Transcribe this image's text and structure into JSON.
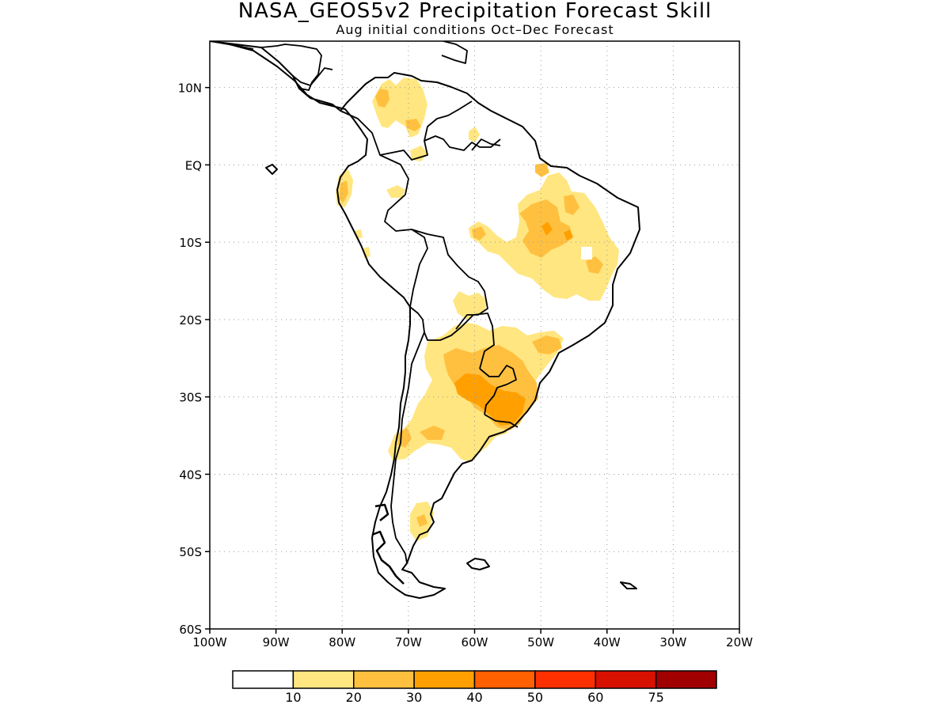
{
  "title": "NASA_GEOS5v2 Precipitation Forecast Skill",
  "subtitle": "Aug initial conditions  Oct–Dec Forecast",
  "map": {
    "lat_range": [
      -60,
      16
    ],
    "lon_range": [
      -100,
      -20
    ],
    "lat_ticks": [
      {
        "value": 10,
        "label": "10N"
      },
      {
        "value": 0,
        "label": "EQ"
      },
      {
        "value": -10,
        "label": "10S"
      },
      {
        "value": -20,
        "label": "20S"
      },
      {
        "value": -30,
        "label": "30S"
      },
      {
        "value": -40,
        "label": "40S"
      },
      {
        "value": -50,
        "label": "50S"
      },
      {
        "value": -60,
        "label": "60S"
      }
    ],
    "lon_ticks": [
      {
        "value": -100,
        "label": "100W"
      },
      {
        "value": -90,
        "label": "90W"
      },
      {
        "value": -80,
        "label": "80W"
      },
      {
        "value": -70,
        "label": "70W"
      },
      {
        "value": -60,
        "label": "60W"
      },
      {
        "value": -50,
        "label": "50W"
      },
      {
        "value": -40,
        "label": "40W"
      },
      {
        "value": -30,
        "label": "30W"
      },
      {
        "value": -20,
        "label": "20W"
      }
    ],
    "grid": true
  },
  "colorbar": {
    "colors": [
      "#ffffff",
      "#ffe680",
      "#ffc040",
      "#ffa000",
      "#ff6000",
      "#ff3000",
      "#d81000",
      "#a00000"
    ],
    "labels": [
      "10",
      "20",
      "30",
      "40",
      "50",
      "60",
      "75"
    ]
  }
}
